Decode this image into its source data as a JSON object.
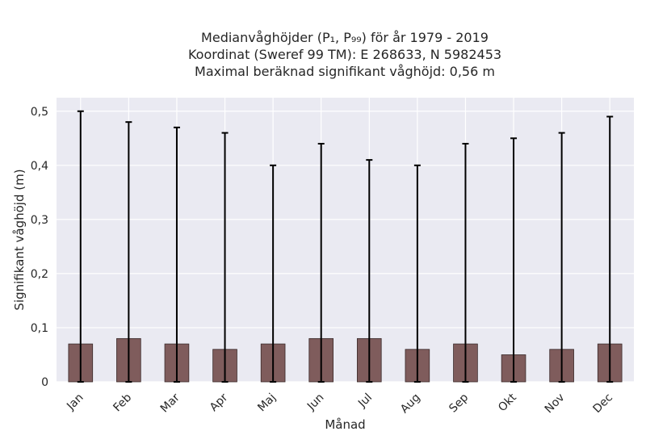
{
  "chart_data": {
    "type": "bar",
    "title_lines": [
      "Medianvåghöjder (P₁, P₉₉) för år 1979 - 2019",
      "Koordinat (Sweref 99 TM): E 268633, N 5982453",
      "Maximal beräknad signifikant våghöjd: 0,56 m"
    ],
    "xlabel": "Månad",
    "ylabel": "Signifikant våghöjd (m)",
    "categories": [
      "Jan",
      "Feb",
      "Mar",
      "Apr",
      "Maj",
      "Jun",
      "Jul",
      "Aug",
      "Sep",
      "Okt",
      "Nov",
      "Dec"
    ],
    "values": [
      0.07,
      0.08,
      0.07,
      0.06,
      0.07,
      0.08,
      0.08,
      0.06,
      0.07,
      0.05,
      0.06,
      0.07
    ],
    "error_low": [
      0,
      0,
      0,
      0,
      0,
      0,
      0,
      0,
      0,
      0,
      0,
      0
    ],
    "error_high": [
      0.5,
      0.48,
      0.47,
      0.46,
      0.4,
      0.44,
      0.41,
      0.4,
      0.44,
      0.45,
      0.46,
      0.49
    ],
    "ylim": [
      0,
      0.525
    ],
    "yticks": [
      0,
      0.1,
      0.2,
      0.3,
      0.4,
      0.5
    ],
    "ytick_labels": [
      "0",
      "0,1",
      "0,2",
      "0,3",
      "0,4",
      "0,5"
    ],
    "grid": true,
    "colors": {
      "bar": "#7f5c5c",
      "bar_edge": "#3a2a2a",
      "errorbar": "#000000",
      "plot_background": "#eaeaf2",
      "grid": "#ffffff"
    }
  }
}
